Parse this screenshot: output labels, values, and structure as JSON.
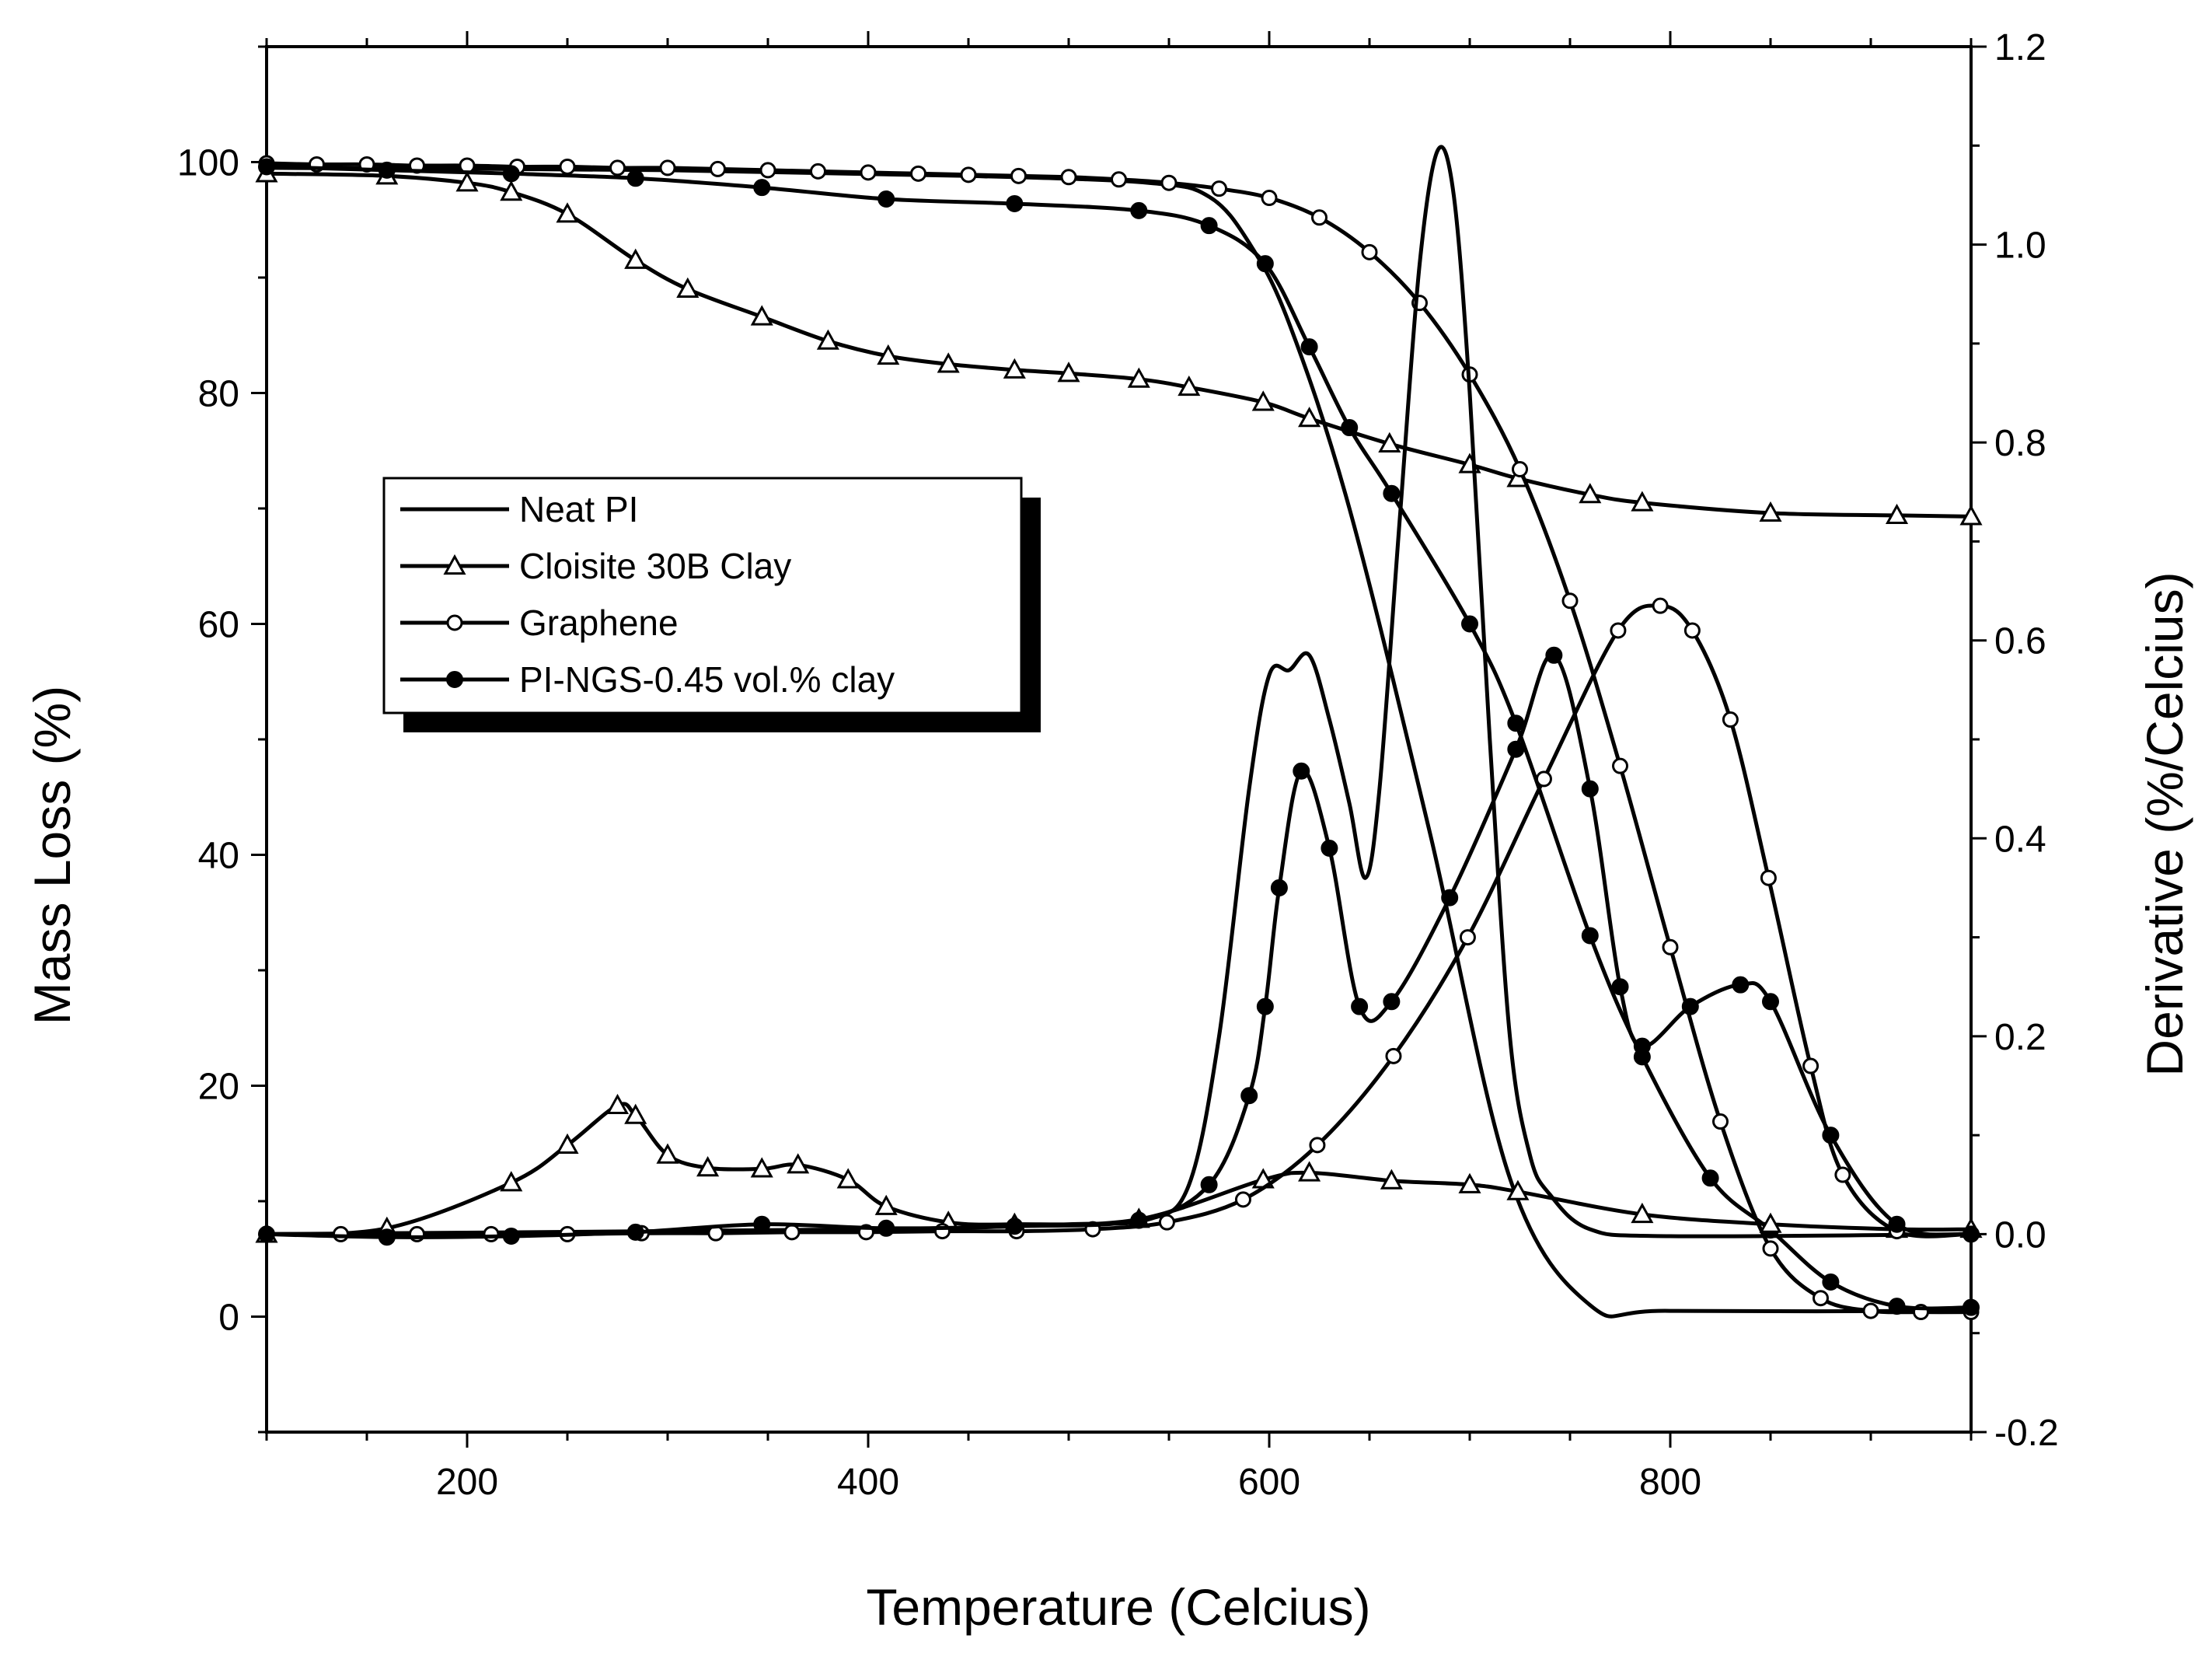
{
  "chart_data": {
    "type": "line",
    "title": "",
    "xlabel": "Temperature (Celcius)",
    "ylabel": "Mass Loss (%)",
    "y2label": "Derivative (%/Celcius)",
    "xlim": [
      100,
      950
    ],
    "ylim": [
      -10,
      110
    ],
    "y2lim": [
      -0.2,
      1.2
    ],
    "xticks": [
      200,
      400,
      600,
      800
    ],
    "yticks": [
      0,
      20,
      40,
      60,
      80,
      100
    ],
    "y2ticks": [
      -0.2,
      0.0,
      0.2,
      0.4,
      0.6,
      0.8,
      1.0,
      1.2
    ],
    "legend": {
      "placement": "center-left",
      "entries": [
        {
          "label": "Neat PI",
          "marker": "none"
        },
        {
          "label": "Cloisite 30B Clay",
          "marker": "open-triangle"
        },
        {
          "label": "Graphene",
          "marker": "open-circle"
        },
        {
          "label": "PI-NGS-0.45 vol.% clay",
          "marker": "filled-circle"
        }
      ]
    },
    "series": [
      {
        "name": "Neat PI",
        "kind": "mass",
        "axis": "left",
        "marker": "none",
        "x": [
          100,
          300,
          450,
          540,
          570,
          590,
          610,
          640,
          680,
          720,
          760,
          800,
          950
        ],
        "y": [
          99.5,
          99.3,
          98.8,
          98.2,
          97,
          93,
          86,
          70,
          42,
          12,
          1,
          0.5,
          0.5
        ]
      },
      {
        "name": "Cloisite 30B Clay",
        "kind": "mass",
        "axis": "left",
        "marker": "open-triangle",
        "x": [
          100,
          160,
          200,
          222,
          250,
          284,
          310,
          347,
          380,
          410,
          440,
          473,
          500,
          535,
          560,
          597,
          620,
          660,
          700,
          724,
          760,
          786,
          850,
          913,
          950
        ],
        "y": [
          99,
          98.8,
          98.2,
          97.4,
          95.5,
          91.5,
          89,
          86.6,
          84.5,
          83.2,
          82.5,
          82,
          81.7,
          81.2,
          80.5,
          79.2,
          77.8,
          75.6,
          73.8,
          72.6,
          71.2,
          70.5,
          69.6,
          69.4,
          69.3
        ]
      },
      {
        "name": "Graphene",
        "kind": "mass",
        "axis": "left",
        "marker": "open-circle",
        "x": [
          100,
          125,
          150,
          175,
          200,
          225,
          250,
          275,
          300,
          325,
          350,
          375,
          400,
          425,
          450,
          475,
          500,
          525,
          550,
          575,
          600,
          625,
          650,
          675,
          700,
          725,
          750,
          775,
          800,
          825,
          850,
          875,
          900,
          925,
          950
        ],
        "y": [
          99.9,
          99.8,
          99.8,
          99.7,
          99.7,
          99.6,
          99.6,
          99.5,
          99.5,
          99.4,
          99.3,
          99.2,
          99.1,
          99,
          98.9,
          98.8,
          98.7,
          98.5,
          98.2,
          97.7,
          96.9,
          95.2,
          92.2,
          87.8,
          81.6,
          73.4,
          62,
          47.7,
          32,
          16.9,
          5.9,
          1.6,
          0.5,
          0.4,
          0.4
        ]
      },
      {
        "name": "PI-NGS-0.45 vol.% clay",
        "kind": "mass",
        "axis": "left",
        "marker": "filled-circle",
        "x": [
          100,
          160,
          222,
          284,
          347,
          409,
          473,
          535,
          570,
          598,
          620,
          640,
          661,
          700,
          723,
          760,
          786,
          820,
          850,
          880,
          913,
          950
        ],
        "y": [
          99.6,
          99.3,
          99,
          98.6,
          97.8,
          96.8,
          96.4,
          95.8,
          94.5,
          91.2,
          84,
          77,
          71.3,
          60,
          51.4,
          33,
          22.5,
          12,
          7.5,
          3,
          0.9,
          0.8
        ]
      },
      {
        "name": "Neat PI",
        "kind": "derivative",
        "axis": "right",
        "marker": "none",
        "x": [
          100,
          400,
          500,
          540,
          560,
          575,
          590,
          600,
          610,
          620,
          630,
          640,
          648,
          655,
          665,
          675,
          684,
          692,
          700,
          710,
          720,
          730,
          740,
          760,
          800,
          950
        ],
        "y": [
          0.0,
          0.005,
          0.01,
          0.015,
          0.05,
          0.2,
          0.45,
          0.565,
          0.57,
          0.585,
          0.52,
          0.435,
          0.36,
          0.45,
          0.72,
          0.98,
          1.095,
          1.05,
          0.85,
          0.5,
          0.2,
          0.08,
          0.04,
          0.005,
          -0.002,
          0.0
        ]
      },
      {
        "name": "Cloisite 30B Clay",
        "kind": "derivative",
        "axis": "right",
        "marker": "open-triangle",
        "x": [
          100,
          160,
          222,
          250,
          275,
          284,
          300,
          320,
          347,
          365,
          390,
          409,
          440,
          473,
          535,
          597,
          620,
          661,
          700,
          724,
          786,
          850,
          913,
          950
        ],
        "y": [
          0.0,
          0.006,
          0.052,
          0.09,
          0.13,
          0.12,
          0.08,
          0.067,
          0.066,
          0.07,
          0.055,
          0.028,
          0.012,
          0.01,
          0.015,
          0.055,
          0.062,
          0.054,
          0.05,
          0.043,
          0.02,
          0.01,
          0.005,
          0.005
        ]
      },
      {
        "name": "Graphene",
        "kind": "derivative",
        "axis": "right",
        "marker": "open-circle",
        "x": [
          100,
          137,
          175,
          212,
          250,
          287,
          324,
          362,
          399,
          437,
          474,
          512,
          549,
          587,
          624,
          662,
          699,
          737,
          774,
          795,
          811,
          830,
          849,
          870,
          886,
          913,
          950
        ],
        "y": [
          0.0,
          0.0,
          0.0,
          0.0,
          0.0,
          0.001,
          0.001,
          0.002,
          0.002,
          0.003,
          0.003,
          0.005,
          0.012,
          0.035,
          0.09,
          0.18,
          0.3,
          0.46,
          0.61,
          0.635,
          0.61,
          0.52,
          0.36,
          0.17,
          0.06,
          0.003,
          0.0
        ]
      },
      {
        "name": "PI-NGS-0.45 vol.% clay",
        "kind": "derivative",
        "axis": "right",
        "marker": "filled-circle",
        "x": [
          100,
          160,
          222,
          284,
          347,
          409,
          473,
          535,
          570,
          590,
          598,
          605,
          616,
          630,
          645,
          661,
          690,
          723,
          742,
          760,
          775,
          786,
          810,
          835,
          850,
          880,
          913,
          950
        ],
        "y": [
          0.0,
          -0.003,
          -0.002,
          0.002,
          0.01,
          0.006,
          0.008,
          0.014,
          0.05,
          0.14,
          0.23,
          0.35,
          0.468,
          0.39,
          0.23,
          0.235,
          0.34,
          0.49,
          0.585,
          0.45,
          0.25,
          0.19,
          0.23,
          0.252,
          0.235,
          0.1,
          0.01,
          0.0
        ]
      }
    ]
  }
}
